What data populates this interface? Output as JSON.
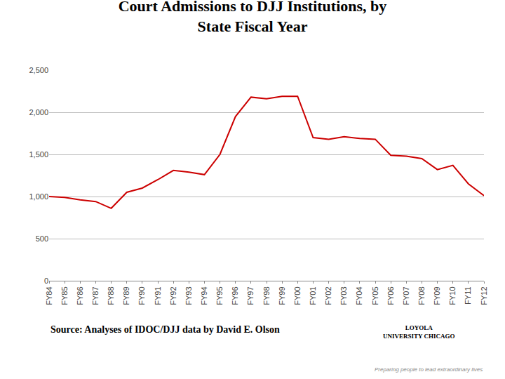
{
  "chart_data": {
    "type": "line",
    "title": "Court Admissions to DJJ Institutions, by\nState Fiscal Year",
    "categories": [
      "FY84",
      "FY85",
      "FY86",
      "FY87",
      "FY88",
      "FY89",
      "FY90",
      "FY91",
      "FY92",
      "FY93",
      "FY94",
      "FY95",
      "FY96",
      "FY97",
      "FY98",
      "FY99",
      "FY00",
      "FY01",
      "FY02",
      "FY03",
      "FY04",
      "FY05",
      "FY06",
      "FY07",
      "FY08",
      "FY09",
      "FY10",
      "FY11",
      "FY12"
    ],
    "values": [
      1000,
      990,
      960,
      940,
      860,
      1050,
      1100,
      1200,
      1310,
      1290,
      1260,
      1500,
      1950,
      2180,
      2160,
      2190,
      2190,
      1700,
      1680,
      1710,
      1690,
      1680,
      1490,
      1480,
      1450,
      1320,
      1370,
      1150,
      1010
    ],
    "color": "#cc0000",
    "ylim": [
      0,
      2500
    ],
    "yticks": [
      0,
      500,
      {
        "value": 1000,
        "label": "1,000"
      },
      {
        "value": 1500,
        "label": "1,500"
      },
      {
        "value": 2000,
        "label": "2,000"
      },
      {
        "value": 2500,
        "label": "2,500"
      }
    ],
    "grid": true,
    "annotations": [
      "Source: Analyses of IDOC/DJJ data by David E. Olson",
      "LOYOLA\nUNIVERSITY CHICAGO",
      "Preparing people to lead extraordinary lives"
    ]
  }
}
